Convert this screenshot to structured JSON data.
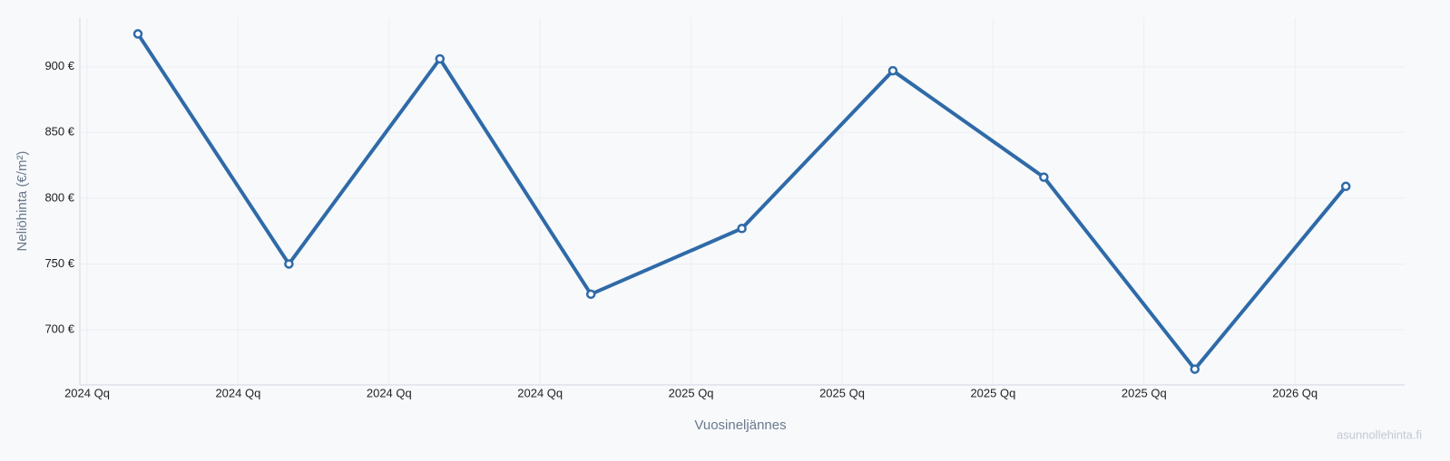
{
  "chart_data": {
    "type": "line",
    "y_label": "Neliöhinta (€/m²)",
    "x_label": "Vuosineljännes",
    "watermark": "asunnollehinta.fi",
    "categories": [
      "2024 Qq",
      "2024 Qq",
      "2024 Qq",
      "2024 Qq",
      "2025 Qq",
      "2025 Qq",
      "2025 Qq",
      "2025 Qq",
      "2026 Qq"
    ],
    "series": [
      {
        "name": "Neliöhinta",
        "color": "#2f6aa8",
        "values": [
          925,
          750,
          906,
          727,
          777,
          897,
          816,
          670,
          809
        ]
      }
    ],
    "ylim": [
      658,
      937
    ],
    "yticks": [
      {
        "value": 700,
        "label": "700 €"
      },
      {
        "value": 750,
        "label": "750 €"
      },
      {
        "value": 800,
        "label": "800 €"
      },
      {
        "value": 850,
        "label": "850 €"
      },
      {
        "value": 900,
        "label": "900 €"
      }
    ],
    "grid": true
  }
}
